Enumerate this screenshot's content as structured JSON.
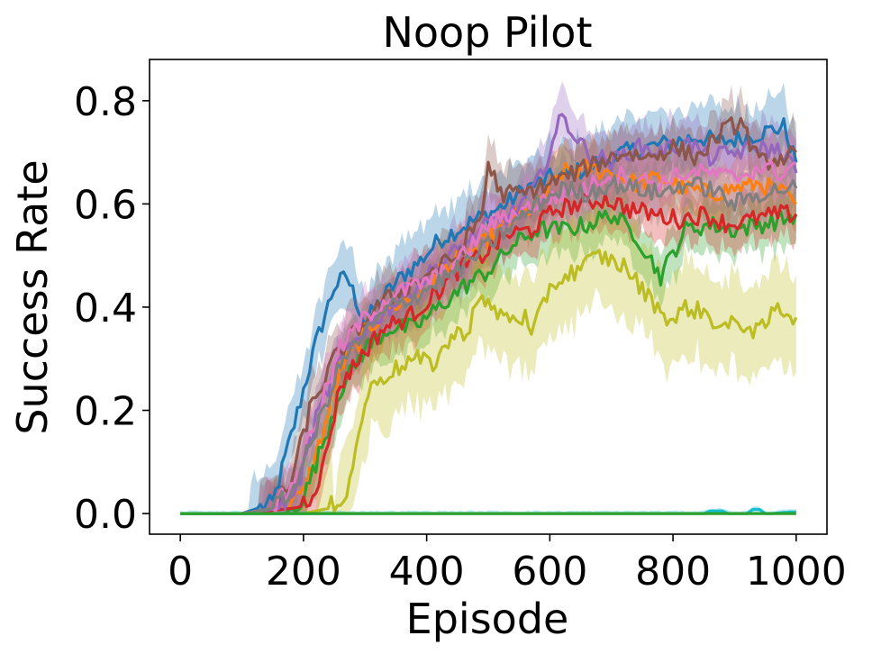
{
  "chart_data": {
    "type": "line",
    "title": "Noop Pilot",
    "xlabel": "Episode",
    "ylabel": "Success Rate",
    "xlim": [
      -50,
      1050
    ],
    "ylim": [
      -0.04,
      0.88
    ],
    "xticks": [
      0,
      200,
      400,
      600,
      800,
      1000
    ],
    "xtick_labels": [
      "0",
      "200",
      "400",
      "600",
      "800",
      "1000"
    ],
    "yticks": [
      0.0,
      0.2,
      0.4,
      0.6,
      0.8
    ],
    "ytick_labels": [
      "0.0",
      "0.2",
      "0.4",
      "0.6",
      "0.8"
    ],
    "grid": false,
    "legend": "none",
    "band_opacity": 0.3,
    "series": [
      {
        "color": "#1f77b4",
        "x": [
          0,
          100,
          150,
          180,
          220,
          250,
          270,
          290,
          300,
          330,
          360,
          390,
          420,
          450,
          480,
          500,
          530,
          560,
          600,
          640,
          680,
          720,
          760,
          800,
          840,
          880,
          920,
          950,
          980,
          1000
        ],
        "y": [
          0,
          0,
          0.02,
          0.15,
          0.33,
          0.44,
          0.46,
          0.4,
          0.37,
          0.42,
          0.46,
          0.49,
          0.53,
          0.55,
          0.57,
          0.58,
          0.6,
          0.63,
          0.65,
          0.66,
          0.68,
          0.7,
          0.71,
          0.72,
          0.73,
          0.72,
          0.73,
          0.74,
          0.75,
          0.68
        ],
        "band": 0.06
      },
      {
        "color": "#ff7f0e",
        "x": [
          0,
          100,
          170,
          200,
          230,
          260,
          300,
          340,
          380,
          420,
          460,
          500,
          540,
          580,
          620,
          660,
          700,
          740,
          780,
          820,
          860,
          900,
          940,
          980,
          1000
        ],
        "y": [
          0,
          0,
          0.01,
          0.04,
          0.15,
          0.28,
          0.35,
          0.4,
          0.42,
          0.47,
          0.5,
          0.53,
          0.57,
          0.6,
          0.66,
          0.67,
          0.66,
          0.64,
          0.65,
          0.63,
          0.62,
          0.63,
          0.64,
          0.62,
          0.6
        ],
        "band": 0.05
      },
      {
        "color": "#2ca02c",
        "x": [
          0,
          100,
          170,
          200,
          230,
          260,
          300,
          340,
          380,
          420,
          460,
          500,
          540,
          580,
          620,
          660,
          700,
          740,
          780,
          820,
          860,
          900,
          940,
          980,
          1000
        ],
        "y": [
          0,
          0,
          0.0,
          0.03,
          0.13,
          0.24,
          0.32,
          0.36,
          0.36,
          0.4,
          0.44,
          0.47,
          0.52,
          0.55,
          0.55,
          0.56,
          0.58,
          0.54,
          0.46,
          0.55,
          0.56,
          0.55,
          0.56,
          0.57,
          0.58
        ],
        "band": 0.05
      },
      {
        "color": "#d62728",
        "x": [
          0,
          100,
          180,
          210,
          230,
          260,
          290,
          330,
          370,
          410,
          450,
          490,
          530,
          570,
          610,
          650,
          690,
          730,
          770,
          810,
          850,
          890,
          930,
          970,
          1000
        ],
        "y": [
          0,
          0,
          0.01,
          0.03,
          0.08,
          0.25,
          0.3,
          0.36,
          0.38,
          0.42,
          0.47,
          0.5,
          0.54,
          0.55,
          0.59,
          0.6,
          0.61,
          0.59,
          0.58,
          0.57,
          0.58,
          0.56,
          0.57,
          0.58,
          0.58
        ],
        "band": 0.05
      },
      {
        "color": "#9467bd",
        "x": [
          0,
          100,
          160,
          190,
          220,
          260,
          300,
          340,
          380,
          420,
          460,
          500,
          540,
          580,
          620,
          660,
          700,
          740,
          780,
          820,
          860,
          900,
          940,
          980,
          1000
        ],
        "y": [
          0,
          0,
          0.01,
          0.05,
          0.18,
          0.3,
          0.36,
          0.4,
          0.44,
          0.48,
          0.52,
          0.56,
          0.58,
          0.64,
          0.77,
          0.7,
          0.68,
          0.71,
          0.7,
          0.72,
          0.69,
          0.7,
          0.71,
          0.7,
          0.66
        ],
        "band": 0.05
      },
      {
        "color": "#8c564b",
        "x": [
          0,
          100,
          150,
          180,
          210,
          250,
          290,
          330,
          370,
          410,
          450,
          490,
          500,
          520,
          560,
          600,
          640,
          680,
          720,
          760,
          800,
          840,
          880,
          910,
          940,
          980,
          1000
        ],
        "y": [
          0,
          0,
          0.01,
          0.06,
          0.2,
          0.3,
          0.36,
          0.41,
          0.44,
          0.47,
          0.5,
          0.58,
          0.68,
          0.62,
          0.62,
          0.64,
          0.66,
          0.68,
          0.7,
          0.69,
          0.71,
          0.69,
          0.74,
          0.76,
          0.68,
          0.69,
          0.7
        ],
        "band": 0.05
      },
      {
        "color": "#e377c2",
        "x": [
          0,
          100,
          150,
          180,
          220,
          260,
          300,
          340,
          380,
          420,
          460,
          500,
          540,
          580,
          620,
          660,
          700,
          740,
          780,
          820,
          860,
          900,
          940,
          980,
          1000
        ],
        "y": [
          0,
          0,
          0.01,
          0.05,
          0.18,
          0.32,
          0.38,
          0.42,
          0.44,
          0.46,
          0.5,
          0.56,
          0.58,
          0.6,
          0.62,
          0.63,
          0.66,
          0.65,
          0.64,
          0.66,
          0.66,
          0.65,
          0.67,
          0.66,
          0.68
        ],
        "band": 0.05
      },
      {
        "color": "#7f7f7f",
        "x": [
          0,
          100,
          150,
          180,
          220,
          260,
          300,
          340,
          380,
          420,
          460,
          500,
          540,
          580,
          620,
          660,
          700,
          740,
          780,
          820,
          860,
          900,
          940,
          980,
          1000
        ],
        "y": [
          0,
          0,
          0.01,
          0.04,
          0.16,
          0.29,
          0.35,
          0.4,
          0.42,
          0.45,
          0.48,
          0.52,
          0.56,
          0.6,
          0.63,
          0.62,
          0.64,
          0.63,
          0.62,
          0.64,
          0.63,
          0.6,
          0.62,
          0.63,
          0.63
        ],
        "band": 0.05
      },
      {
        "color": "#bcbd22",
        "x": [
          0,
          100,
          200,
          240,
          270,
          290,
          300,
          320,
          350,
          380,
          410,
          440,
          470,
          480,
          500,
          530,
          560,
          570,
          600,
          640,
          680,
          720,
          740,
          760,
          800,
          820,
          850,
          880,
          910,
          940,
          970,
          1000
        ],
        "y": [
          0,
          0,
          0,
          0.01,
          0.04,
          0.15,
          0.22,
          0.26,
          0.28,
          0.3,
          0.29,
          0.34,
          0.36,
          0.42,
          0.4,
          0.38,
          0.38,
          0.34,
          0.44,
          0.47,
          0.5,
          0.48,
          0.45,
          0.42,
          0.37,
          0.4,
          0.39,
          0.36,
          0.37,
          0.35,
          0.4,
          0.38
        ],
        "band": 0.09
      },
      {
        "color": "#17becf",
        "x": [
          0,
          850,
          860,
          870,
          880,
          890,
          920,
          930,
          940,
          950,
          960,
          990,
          1000
        ],
        "y": [
          0,
          0,
          0.005,
          0.005,
          0.005,
          0,
          0,
          0.008,
          0.008,
          0,
          0,
          0.003,
          0.003
        ],
        "band": 0.005
      },
      {
        "color": "#2ca02c",
        "x": [
          0,
          1000
        ],
        "y": [
          0,
          0
        ],
        "band": 0
      }
    ]
  }
}
